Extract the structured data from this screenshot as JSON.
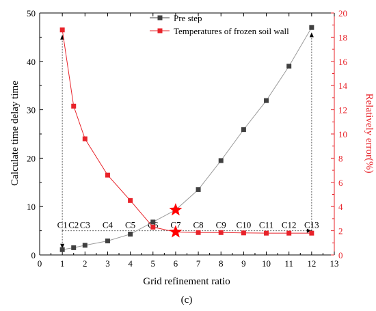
{
  "chart_data": {
    "type": "line",
    "xlabel": "Grid refinement ratio",
    "ylabel_left": "Calculate time delay time",
    "ylabel_right": "Relatively error(%)",
    "caption": "(c)",
    "xlim": [
      0,
      13
    ],
    "ylim_left": [
      0,
      50
    ],
    "ylim_right": [
      0,
      20
    ],
    "x_ticks": [
      "0",
      "1",
      "2",
      "3",
      "4",
      "5",
      "6",
      "7",
      "8",
      "9",
      "10",
      "11",
      "12",
      "13"
    ],
    "y_ticks_left": [
      "0",
      "10",
      "20",
      "30",
      "40",
      "50"
    ],
    "y_ticks_right": [
      "0",
      "2",
      "4",
      "6",
      "8",
      "10",
      "12",
      "14",
      "16",
      "18",
      "20"
    ],
    "grid": false,
    "legend_position": "top-center",
    "series": [
      {
        "name": "Pre step",
        "axis": "left",
        "color": "#404040",
        "marker": "square",
        "x": [
          1,
          1.5,
          2,
          3,
          4,
          5,
          6,
          7,
          8,
          9,
          10,
          11,
          12
        ],
        "y": [
          1.1,
          1.5,
          2.0,
          2.9,
          4.3,
          6.8,
          9.3,
          13.5,
          19.5,
          25.9,
          31.9,
          39.0,
          47.0
        ]
      },
      {
        "name": "Temperatures of frozen soil wall",
        "axis": "right",
        "color": "#e8232a",
        "marker": "square",
        "x": [
          1,
          1.5,
          2,
          3,
          4,
          5,
          6,
          7,
          8,
          9,
          10,
          11,
          12
        ],
        "y": [
          18.6,
          12.3,
          9.6,
          6.6,
          4.5,
          2.3,
          1.9,
          1.85,
          1.85,
          1.82,
          1.8,
          1.8,
          1.8
        ]
      }
    ],
    "highlight_stars": [
      {
        "x": 6,
        "y": 9.3,
        "axis": "left"
      },
      {
        "x": 6,
        "y": 1.9,
        "axis": "right"
      }
    ],
    "annotations": {
      "grid_labels": [
        {
          "x": 1,
          "text": "C1"
        },
        {
          "x": 1.5,
          "text": "C2"
        },
        {
          "x": 2,
          "text": "C3"
        },
        {
          "x": 3,
          "text": "C4"
        },
        {
          "x": 4,
          "text": "C5"
        },
        {
          "x": 5,
          "text": "C6"
        },
        {
          "x": 6,
          "text": "C7"
        },
        {
          "x": 7,
          "text": "C8"
        },
        {
          "x": 8,
          "text": "C9"
        },
        {
          "x": 9,
          "text": "C10"
        },
        {
          "x": 10,
          "text": "C11"
        },
        {
          "x": 11,
          "text": "C12"
        },
        {
          "x": 12,
          "text": "C13"
        }
      ],
      "label_line_y": 5.0,
      "arrows": [
        {
          "x": 1,
          "from_y": 5.0,
          "to_y_axis": "right",
          "to_y": 18.2
        },
        {
          "x": 1,
          "from_y": 5.0,
          "to_y_axis": "left",
          "to_y": 1.3
        },
        {
          "x": 12,
          "from_y": 5.0,
          "to_y_axis": "left",
          "to_y": 46.0
        },
        {
          "x": 12,
          "from_y": 5.0,
          "to_y_axis": "right",
          "to_y": 2.1
        }
      ]
    }
  }
}
